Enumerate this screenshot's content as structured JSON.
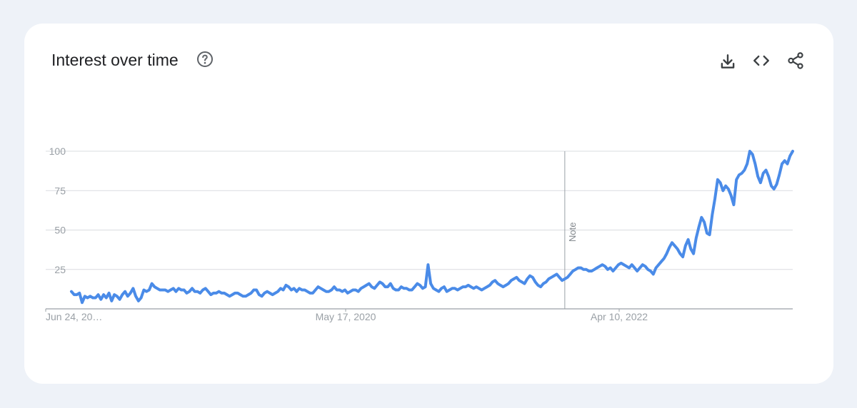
{
  "card": {
    "title": "Interest over time",
    "help_icon": "help-circle-icon",
    "actions": [
      {
        "icon": "download-icon"
      },
      {
        "icon": "embed-code-icon"
      },
      {
        "icon": "share-icon"
      }
    ]
  },
  "colors": {
    "line": "#4a8be8",
    "grid": "#dadce0",
    "tick_text": "#9aa0a6",
    "title_text": "#202124",
    "background": "#eef2f8",
    "card": "#ffffff"
  },
  "chart_data": {
    "type": "line",
    "title": "Interest over time",
    "xlabel": "",
    "ylabel": "",
    "ylim": [
      0,
      100
    ],
    "yticks": [
      25,
      50,
      75,
      100
    ],
    "xtick_labels": [
      "Jun 24, 20…",
      "May 17, 2020",
      "Apr 10, 2022"
    ],
    "grid": true,
    "annotations": [
      {
        "label": "Note",
        "x_index": 184
      }
    ],
    "series": [
      {
        "values": [
          11,
          9,
          9,
          10,
          4,
          8,
          7,
          8,
          7,
          7,
          9,
          6,
          9,
          7,
          10,
          5,
          9,
          8,
          6,
          9,
          11,
          8,
          10,
          13,
          8,
          5,
          7,
          12,
          11,
          12,
          16,
          14,
          13,
          12,
          12,
          12,
          11,
          12,
          13,
          11,
          13,
          12,
          12,
          10,
          11,
          13,
          11,
          11,
          10,
          12,
          13,
          11,
          9,
          10,
          10,
          11,
          10,
          10,
          9,
          8,
          9,
          10,
          10,
          9,
          8,
          8,
          9,
          10,
          12,
          12,
          9,
          8,
          10,
          11,
          10,
          9,
          10,
          11,
          13,
          12,
          15,
          14,
          12,
          13,
          11,
          13,
          12,
          12,
          11,
          10,
          10,
          12,
          14,
          13,
          12,
          11,
          11,
          12,
          14,
          12,
          12,
          11,
          12,
          10,
          11,
          12,
          12,
          11,
          13,
          14,
          15,
          16,
          14,
          13,
          15,
          17,
          16,
          14,
          14,
          16,
          13,
          12,
          12,
          14,
          13,
          13,
          12,
          12,
          14,
          16,
          15,
          13,
          14,
          28,
          16,
          13,
          12,
          11,
          13,
          14,
          11,
          12,
          13,
          13,
          12,
          13,
          14,
          14,
          15,
          14,
          13,
          14,
          13,
          12,
          13,
          14,
          15,
          17,
          18,
          16,
          15,
          14,
          15,
          16,
          18,
          19,
          20,
          18,
          17,
          16,
          19,
          21,
          20,
          17,
          15,
          14,
          16,
          17,
          19,
          20,
          21,
          22,
          20,
          18,
          19,
          20,
          22,
          24,
          25,
          26,
          26,
          25,
          25,
          24,
          24,
          25,
          26,
          27,
          28,
          27,
          25,
          26,
          24,
          26,
          28,
          29,
          28,
          27,
          26,
          28,
          26,
          24,
          26,
          28,
          27,
          25,
          24,
          22,
          26,
          28,
          30,
          32,
          35,
          39,
          42,
          40,
          38,
          35,
          33,
          40,
          44,
          38,
          35,
          45,
          52,
          58,
          55,
          48,
          47,
          60,
          70,
          82,
          80,
          75,
          78,
          76,
          72,
          66,
          82,
          85,
          86,
          88,
          92,
          100,
          98,
          92,
          84,
          80,
          86,
          88,
          84,
          78,
          76,
          79,
          85,
          92,
          94,
          92,
          97,
          100
        ]
      }
    ]
  }
}
